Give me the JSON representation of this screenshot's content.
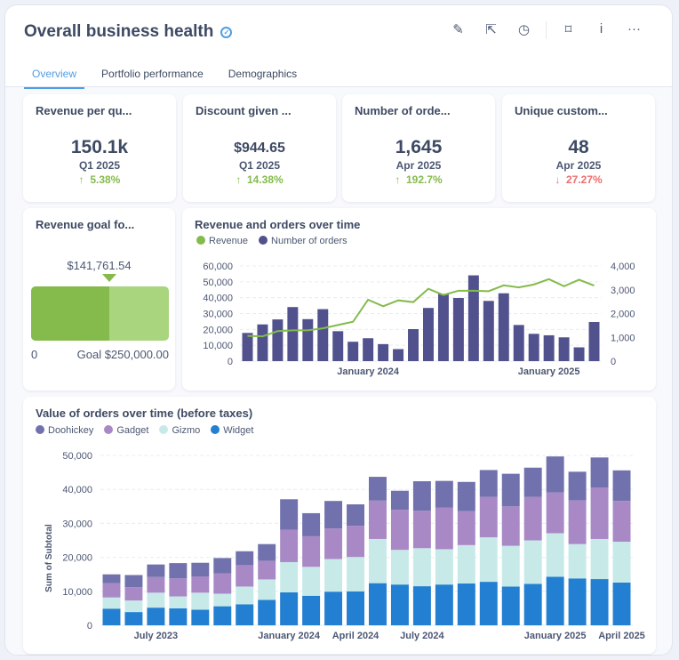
{
  "header": {
    "title": "Overall business health",
    "verified_icon": "verified-check-icon",
    "actions": [
      "edit-icon",
      "share-icon",
      "history-icon",
      "bookmark-icon",
      "info-icon",
      "more-icon"
    ]
  },
  "tabs": [
    {
      "label": "Overview",
      "active": true
    },
    {
      "label": "Portfolio performance"
    },
    {
      "label": "Demographics"
    }
  ],
  "kpis": [
    {
      "title": "Revenue per qu...",
      "value": "150.1k",
      "period": "Q1 2025",
      "change": "5.38%",
      "direction": "up"
    },
    {
      "title": "Discount given ...",
      "value": "$944.65",
      "period": "Q1 2025",
      "change": "14.38%",
      "direction": "up"
    },
    {
      "title": "Number of orde...",
      "value": "1,645",
      "period": "Apr 2025",
      "change": "192.7%",
      "direction": "up"
    },
    {
      "title": "Unique custom...",
      "value": "48",
      "period": "Apr 2025",
      "change": "27.27%",
      "direction": "down"
    }
  ],
  "colors": {
    "up": "#84bb4c",
    "down": "#ed6e6e",
    "accent": "#509ee3"
  },
  "goal": {
    "title": "Revenue goal fo...",
    "value_label": "$141,761.54",
    "value": 141761.54,
    "goal": 250000,
    "min_label": "0",
    "goal_label": "Goal $250,000.00"
  },
  "chart_data": [
    {
      "type": "bar+line",
      "title": "Revenue and orders over time",
      "x": [
        "2023-05",
        "2023-06",
        "2023-07",
        "2023-08",
        "2023-09",
        "2023-10",
        "2023-11",
        "2023-12",
        "2024-01",
        "2024-02",
        "2024-03",
        "2024-04",
        "2024-05",
        "2024-06",
        "2024-07",
        "2024-08",
        "2024-09",
        "2024-10",
        "2024-11",
        "2024-12",
        "2025-01",
        "2025-02",
        "2025-03",
        "2025-04"
      ],
      "xticks": [
        "January 2024",
        "January 2025"
      ],
      "series": [
        {
          "name": "Revenue",
          "type": "line",
          "axis": "left",
          "color": "#84bb4c",
          "values": [
            15900,
            15600,
            18900,
            19400,
            19400,
            20700,
            22800,
            24800,
            38700,
            34600,
            38300,
            37200,
            45600,
            41700,
            44400,
            44400,
            44100,
            47800,
            46500,
            48300,
            51700,
            47200,
            51300,
            47600
          ]
        },
        {
          "name": "Number of orders",
          "type": "bar",
          "axis": "right",
          "color": "#51528d",
          "values": [
            1185,
            1543,
            1753,
            2272,
            1765,
            2185,
            1259,
            815,
            963,
            716,
            506,
            1346,
            2235,
            2827,
            2654,
            3605,
            2531,
            2852,
            1519,
            1148,
            1086,
            1000,
            580,
            1645
          ]
        }
      ],
      "ylim_left": [
        0,
        60000
      ],
      "yticks_left": [
        "0",
        "10,000",
        "20,000",
        "30,000",
        "40,000",
        "50,000",
        "60,000"
      ],
      "ylim_right": [
        0,
        4000
      ],
      "yticks_right": [
        "0",
        "1,000",
        "2,000",
        "3,000",
        "4,000"
      ],
      "grid": true,
      "legend": "top-left"
    },
    {
      "type": "stacked-bar",
      "title": "Value of orders over time (before taxes)",
      "ylabel": "Sum of Subtotal",
      "x": [
        "2023-05",
        "2023-06",
        "2023-07",
        "2023-08",
        "2023-09",
        "2023-10",
        "2023-11",
        "2023-12",
        "2024-01",
        "2024-02",
        "2024-03",
        "2024-04",
        "2024-05",
        "2024-06",
        "2024-07",
        "2024-08",
        "2024-09",
        "2024-10",
        "2024-11",
        "2024-12",
        "2025-01",
        "2025-02",
        "2025-03",
        "2025-04"
      ],
      "xticks": [
        {
          "label": "July 2023",
          "index": 2
        },
        {
          "label": "January 2024",
          "index": 8
        },
        {
          "label": "April 2024",
          "index": 11
        },
        {
          "label": "July 2024",
          "index": 14
        },
        {
          "label": "January 2025",
          "index": 20
        },
        {
          "label": "April 2025",
          "index": 23
        }
      ],
      "series": [
        {
          "name": "Widget",
          "color": "#227fd2",
          "values": [
            4900,
            3900,
            5200,
            5000,
            4600,
            5600,
            6200,
            7500,
            9700,
            8700,
            9900,
            10000,
            12400,
            12000,
            11500,
            12000,
            12300,
            12800,
            11400,
            12200,
            14300,
            13800,
            13600,
            12600
          ]
        },
        {
          "name": "Gizmo",
          "color": "#c7eae9",
          "values": [
            3300,
            3400,
            4400,
            3500,
            5000,
            3700,
            5200,
            6000,
            8900,
            8500,
            9600,
            10100,
            13000,
            10200,
            11200,
            10400,
            11300,
            13100,
            12000,
            12800,
            12800,
            10100,
            11800,
            12000
          ]
        },
        {
          "name": "Gadget",
          "color": "#a989c5",
          "values": [
            4200,
            3900,
            4600,
            5300,
            4800,
            6000,
            6300,
            5500,
            9500,
            9000,
            9000,
            9200,
            11300,
            11800,
            11000,
            12200,
            10000,
            11900,
            11600,
            12800,
            12000,
            12900,
            15100,
            12000
          ]
        },
        {
          "name": "Doohickey",
          "color": "#7172ad",
          "values": [
            2600,
            3600,
            3700,
            4500,
            4000,
            4500,
            4100,
            4900,
            9000,
            6800,
            8100,
            6300,
            7000,
            5600,
            8700,
            7900,
            8600,
            7900,
            9600,
            8600,
            10600,
            8400,
            8900,
            9000
          ]
        }
      ],
      "legend_order": [
        "Doohickey",
        "Gadget",
        "Gizmo",
        "Widget"
      ],
      "ylim": [
        0,
        50000
      ],
      "yticks": [
        "0",
        "10,000",
        "20,000",
        "30,000",
        "40,000",
        "50,000"
      ],
      "grid": true,
      "legend": "top-left"
    }
  ]
}
